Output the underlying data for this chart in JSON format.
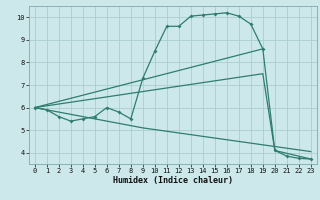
{
  "bg_color": "#cce8ea",
  "line_color": "#2e7d6e",
  "grid_color": "#aacdd0",
  "xlabel": "Humidex (Indice chaleur)",
  "ylim": [
    3.5,
    10.5
  ],
  "xlim": [
    -0.5,
    23.5
  ],
  "yticks": [
    4,
    5,
    6,
    7,
    8,
    9,
    10
  ],
  "xticks": [
    0,
    1,
    2,
    3,
    4,
    5,
    6,
    7,
    8,
    9,
    10,
    11,
    12,
    13,
    14,
    15,
    16,
    17,
    18,
    19,
    20,
    21,
    22,
    23
  ],
  "series1": [
    [
      0,
      6.0
    ],
    [
      1,
      5.9
    ],
    [
      2,
      5.6
    ],
    [
      3,
      5.4
    ],
    [
      4,
      5.5
    ],
    [
      5,
      5.6
    ],
    [
      6,
      6.0
    ],
    [
      7,
      5.8
    ],
    [
      8,
      5.5
    ],
    [
      9,
      7.3
    ],
    [
      10,
      8.5
    ],
    [
      11,
      9.6
    ],
    [
      12,
      9.6
    ],
    [
      13,
      10.05
    ],
    [
      14,
      10.1
    ],
    [
      15,
      10.15
    ],
    [
      16,
      10.2
    ],
    [
      17,
      10.05
    ],
    [
      18,
      9.7
    ],
    [
      19,
      8.6
    ],
    [
      20,
      4.1
    ],
    [
      21,
      3.85
    ],
    [
      22,
      3.75
    ],
    [
      23,
      3.72
    ]
  ],
  "series2": [
    [
      0,
      6.0
    ],
    [
      19,
      8.6
    ]
  ],
  "series3": [
    [
      0,
      6.0
    ],
    [
      19,
      7.5
    ],
    [
      20,
      4.1
    ],
    [
      23,
      3.72
    ]
  ],
  "series4": [
    [
      0,
      6.0
    ],
    [
      9,
      5.1
    ],
    [
      23,
      4.05
    ]
  ]
}
